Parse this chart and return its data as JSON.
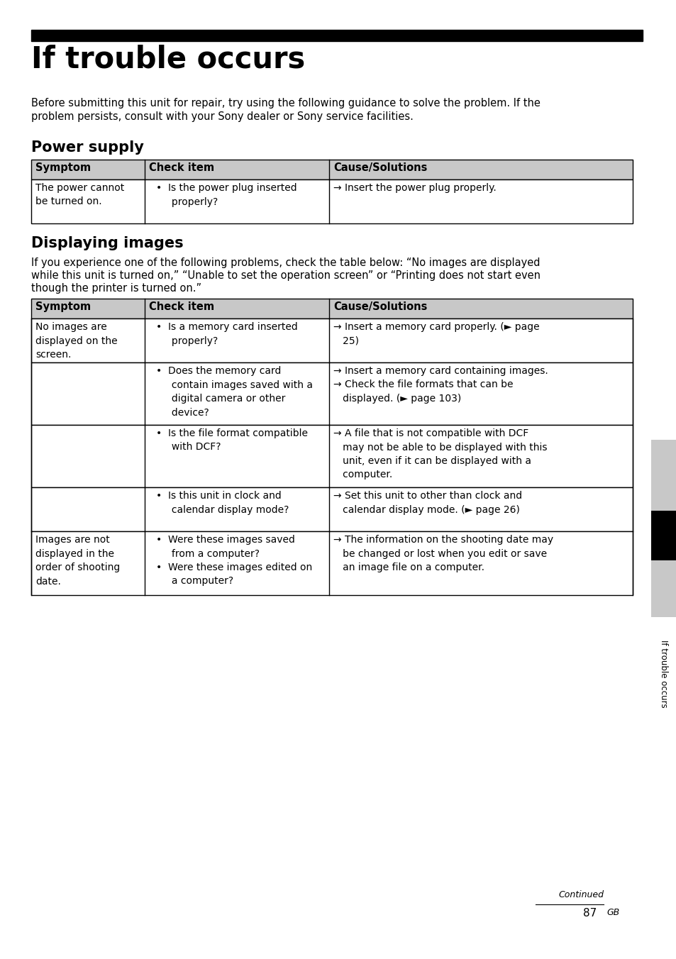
{
  "title": "If trouble occurs",
  "intro_text1": "Before submitting this unit for repair, try using the following guidance to solve the problem. If the",
  "intro_text2": "problem persists, consult with your Sony dealer or Sony service facilities.",
  "section1_title": "Power supply",
  "section2_title": "Displaying images",
  "section2_intro1": "If you experience one of the following problems, check the table below: “No images are displayed",
  "section2_intro2": "while this unit is turned on,” “Unable to set the operation screen” or “Printing does not start even",
  "section2_intro3": "though the printer is turned on.”",
  "header_bg": "#c8c8c8",
  "table_border": "#000000",
  "page_number": "87",
  "page_label": "GB",
  "continued_text": "Continued",
  "sidebar_text": "If trouble occurs",
  "sidebar_bg": "#000000",
  "sidebar_gray": "#c8c8c8",
  "bg_color": "#ffffff"
}
